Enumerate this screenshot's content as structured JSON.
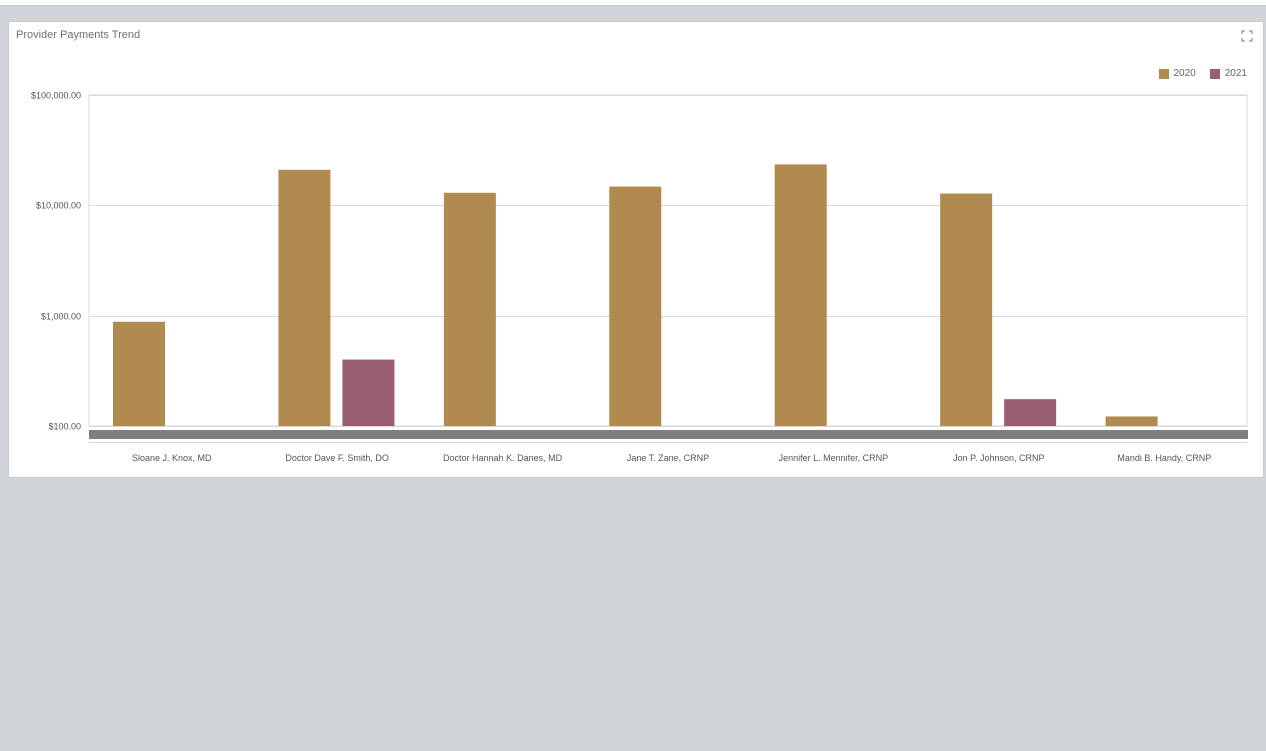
{
  "panel": {
    "title": "Provider Payments Trend",
    "expand_icon": "expand-icon"
  },
  "colors": {
    "background": "#d1d5d8",
    "series_2020": "#b08a4e",
    "series_2021": "#995e6f",
    "scrollbar": "#7f7f7f"
  },
  "chart_data": {
    "type": "bar",
    "title": "Provider Payments Trend",
    "y_scale": "log",
    "ylim": [
      100,
      100000
    ],
    "y_ticks": [
      100,
      1000,
      10000,
      100000
    ],
    "y_tick_labels": [
      "$100.00",
      "$1,000.00",
      "$10,000.00",
      "$100,000.00"
    ],
    "grid": true,
    "legend_position": "top-right",
    "categories": [
      "Sloane J. Knox, MD",
      "Doctor Dave F. Smith, DO",
      "Doctor Hannah K. Danes, MD",
      "Jane T. Zane, CRNP",
      "Jennifer L. Mennifer, CRNP",
      "Jon P. Johnson, CRNP",
      "Mandi B. Handy, CRNP"
    ],
    "series": [
      {
        "name": "2020",
        "values": [
          880,
          21000,
          13000,
          14800,
          23500,
          12800,
          122
        ]
      },
      {
        "name": "2021",
        "values": [
          null,
          400,
          null,
          null,
          null,
          175,
          null
        ]
      }
    ]
  }
}
